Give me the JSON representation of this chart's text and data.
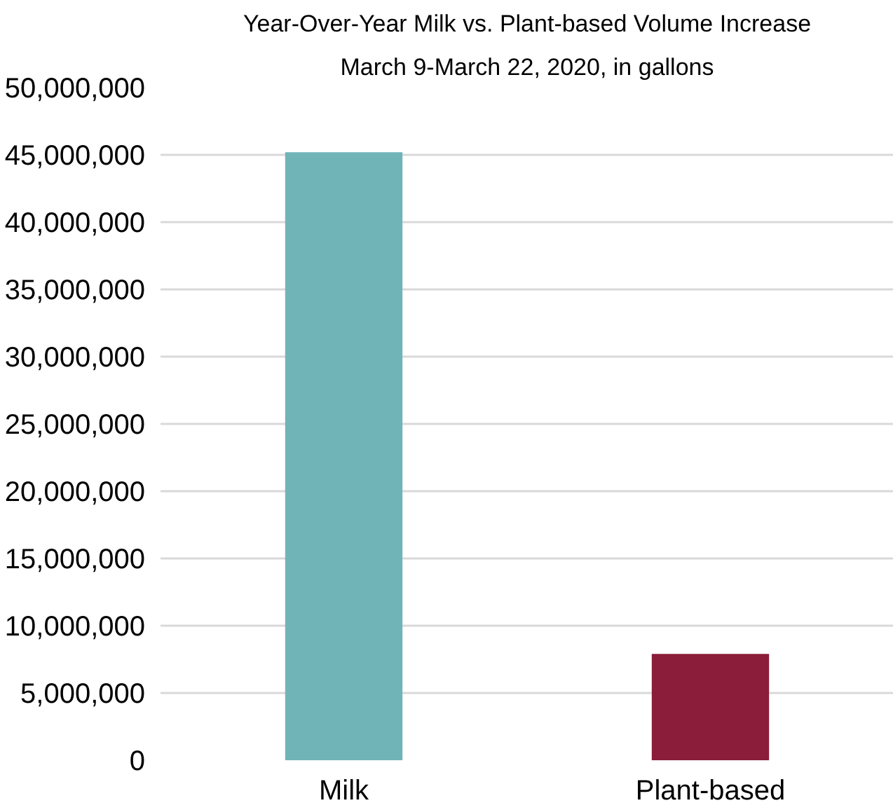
{
  "chart_data": {
    "type": "bar",
    "title": "Year-Over-Year Milk vs. Plant-based Volume Increase",
    "subtitle": "March 9-March 22, 2020, in gallons",
    "categories": [
      "Milk",
      "Plant-based"
    ],
    "values": [
      45200000,
      7900000
    ],
    "colors": [
      "#70b4b8",
      "#8b1c3a"
    ],
    "ylim": [
      0,
      50000000
    ],
    "yticks": [
      {
        "value": 0,
        "label": "0"
      },
      {
        "value": 5000000,
        "label": "5,000,000"
      },
      {
        "value": 10000000,
        "label": "10,000,000"
      },
      {
        "value": 15000000,
        "label": "15,000,000"
      },
      {
        "value": 20000000,
        "label": "20,000,000"
      },
      {
        "value": 25000000,
        "label": "25,000,000"
      },
      {
        "value": 30000000,
        "label": "30,000,000"
      },
      {
        "value": 35000000,
        "label": "35,000,000"
      },
      {
        "value": 40000000,
        "label": "40,000,000"
      },
      {
        "value": 45000000,
        "label": "45,000,000"
      },
      {
        "value": 50000000,
        "label": "50,000,000"
      }
    ],
    "grid": "y"
  }
}
